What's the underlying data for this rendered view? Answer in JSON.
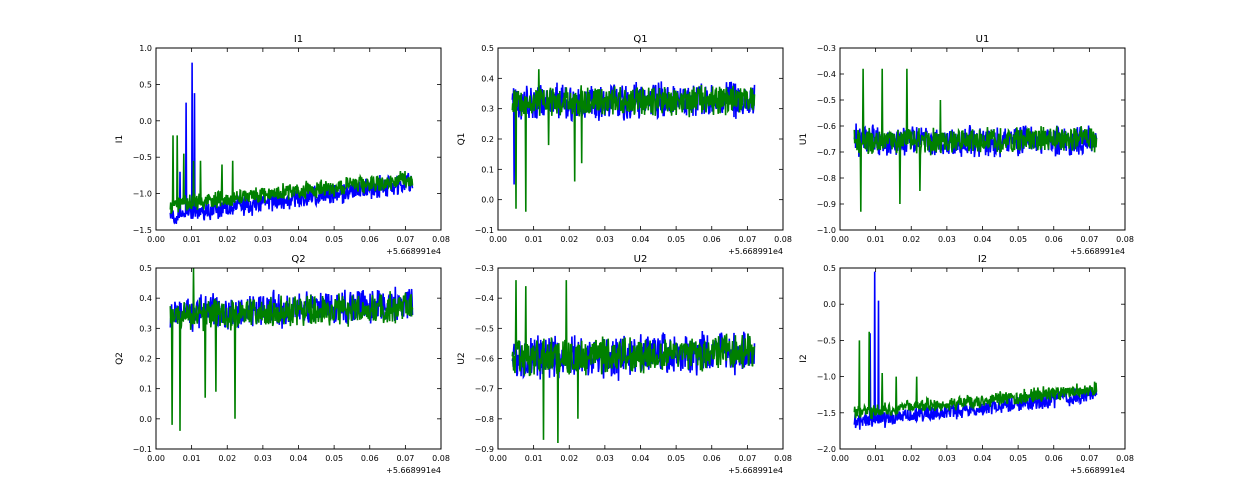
{
  "colors": {
    "series_1": "#0000ff",
    "series_2": "#008000",
    "axes": "#000000",
    "background": "#ffffff"
  },
  "chart_data": [
    {
      "type": "line",
      "title": "I1",
      "ylabel": "I1",
      "xlim": [
        0.0,
        0.08
      ],
      "ylim": [
        -1.5,
        1.0
      ],
      "xticks": [
        "0.00",
        "0.01",
        "0.02",
        "0.03",
        "0.04",
        "0.05",
        "0.06",
        "0.07",
        "0.08"
      ],
      "yticks": [
        "1.0",
        "0.5",
        "0.0",
        "−0.5",
        "−1.0",
        "−1.5"
      ],
      "x_offset_label": "+5.668991e4",
      "series": [
        {
          "color": "#0000ff",
          "x_range": [
            0.004,
            0.072
          ],
          "y_start": -1.3,
          "y_end": -0.85,
          "band": 0.15,
          "spikes": [
            [
              0.0085,
              0.25
            ],
            [
              0.0102,
              0.8
            ],
            [
              0.0108,
              0.38
            ],
            [
              0.0068,
              -0.7
            ]
          ]
        },
        {
          "color": "#008000",
          "x_range": [
            0.004,
            0.072
          ],
          "y_start": -1.15,
          "y_end": -0.8,
          "band": 0.12,
          "spikes": [
            [
              0.0048,
              -0.2
            ],
            [
              0.006,
              -0.2
            ],
            [
              0.0078,
              -0.45
            ],
            [
              0.0105,
              -0.55
            ],
            [
              0.0125,
              -0.55
            ],
            [
              0.0185,
              -0.6
            ],
            [
              0.0215,
              -0.55
            ]
          ]
        }
      ]
    },
    {
      "type": "line",
      "title": "Q1",
      "ylabel": "Q1",
      "xlim": [
        0.0,
        0.08
      ],
      "ylim": [
        -0.1,
        0.5
      ],
      "xticks": [
        "0.00",
        "0.01",
        "0.02",
        "0.03",
        "0.04",
        "0.05",
        "0.06",
        "0.07",
        "0.08"
      ],
      "yticks": [
        "0.5",
        "0.4",
        "0.3",
        "0.2",
        "0.1",
        "0.0",
        "−0.1"
      ],
      "x_offset_label": "+5.668991e4",
      "series": [
        {
          "color": "#0000ff",
          "x_range": [
            0.004,
            0.072
          ],
          "y_start": 0.32,
          "y_end": 0.33,
          "band": 0.06,
          "spikes": [
            [
              0.0045,
              0.05
            ]
          ]
        },
        {
          "color": "#008000",
          "x_range": [
            0.004,
            0.072
          ],
          "y_start": 0.32,
          "y_end": 0.33,
          "band": 0.05,
          "spikes": [
            [
              0.005,
              -0.03
            ],
            [
              0.0078,
              -0.04
            ],
            [
              0.0115,
              0.43
            ],
            [
              0.0142,
              0.18
            ],
            [
              0.0215,
              0.06
            ],
            [
              0.0235,
              0.12
            ]
          ]
        }
      ]
    },
    {
      "type": "line",
      "title": "U1",
      "ylabel": "U1",
      "xlim": [
        0.0,
        0.08
      ],
      "ylim": [
        -1.0,
        -0.3
      ],
      "xticks": [
        "0.00",
        "0.01",
        "0.02",
        "0.03",
        "0.04",
        "0.05",
        "0.06",
        "0.07",
        "0.08"
      ],
      "yticks": [
        "−0.3",
        "−0.4",
        "−0.5",
        "−0.6",
        "−0.7",
        "−0.8",
        "−0.9",
        "−1.0"
      ],
      "x_offset_label": "+5.668991e4",
      "series": [
        {
          "color": "#0000ff",
          "x_range": [
            0.004,
            0.072
          ],
          "y_start": -0.66,
          "y_end": -0.66,
          "band": 0.06,
          "spikes": []
        },
        {
          "color": "#008000",
          "x_range": [
            0.004,
            0.072
          ],
          "y_start": -0.66,
          "y_end": -0.65,
          "band": 0.05,
          "spikes": [
            [
              0.0058,
              -0.93
            ],
            [
              0.0065,
              -0.38
            ],
            [
              0.0118,
              -0.38
            ],
            [
              0.0168,
              -0.9
            ],
            [
              0.0188,
              -0.38
            ],
            [
              0.0225,
              -0.85
            ],
            [
              0.0282,
              -0.5
            ]
          ]
        }
      ]
    },
    {
      "type": "line",
      "title": "Q2",
      "ylabel": "Q2",
      "xlim": [
        0.0,
        0.08
      ],
      "ylim": [
        -0.1,
        0.5
      ],
      "xticks": [
        "0.00",
        "0.01",
        "0.02",
        "0.03",
        "0.04",
        "0.05",
        "0.06",
        "0.07",
        "0.08"
      ],
      "yticks": [
        "0.5",
        "0.4",
        "0.3",
        "0.2",
        "0.1",
        "0.0",
        "−0.1"
      ],
      "x_offset_label": "+5.668991e4",
      "series": [
        {
          "color": "#0000ff",
          "x_range": [
            0.004,
            0.072
          ],
          "y_start": 0.35,
          "y_end": 0.38,
          "band": 0.06,
          "spikes": []
        },
        {
          "color": "#008000",
          "x_range": [
            0.004,
            0.072
          ],
          "y_start": 0.34,
          "y_end": 0.37,
          "band": 0.05,
          "spikes": [
            [
              0.0045,
              -0.02
            ],
            [
              0.0068,
              -0.04
            ],
            [
              0.0105,
              0.5
            ],
            [
              0.0138,
              0.07
            ],
            [
              0.0168,
              0.09
            ],
            [
              0.0222,
              -0.0
            ]
          ]
        }
      ]
    },
    {
      "type": "line",
      "title": "U2",
      "ylabel": "U2",
      "xlim": [
        0.0,
        0.08
      ],
      "ylim": [
        -0.9,
        -0.3
      ],
      "xticks": [
        "0.00",
        "0.01",
        "0.02",
        "0.03",
        "0.04",
        "0.05",
        "0.06",
        "0.07",
        "0.08"
      ],
      "yticks": [
        "−0.3",
        "−0.4",
        "−0.5",
        "−0.6",
        "−0.7",
        "−0.8",
        "−0.9"
      ],
      "x_offset_label": "+5.668991e4",
      "series": [
        {
          "color": "#0000ff",
          "x_range": [
            0.004,
            0.072
          ],
          "y_start": -0.6,
          "y_end": -0.58,
          "band": 0.07,
          "spikes": []
        },
        {
          "color": "#008000",
          "x_range": [
            0.004,
            0.072
          ],
          "y_start": -0.6,
          "y_end": -0.58,
          "band": 0.06,
          "spikes": [
            [
              0.005,
              -0.34
            ],
            [
              0.0078,
              -0.36
            ],
            [
              0.0128,
              -0.87
            ],
            [
              0.0168,
              -0.88
            ],
            [
              0.0192,
              -0.34
            ],
            [
              0.0225,
              -0.8
            ]
          ]
        }
      ]
    },
    {
      "type": "line",
      "title": "I2",
      "ylabel": "I2",
      "xlim": [
        0.0,
        0.08
      ],
      "ylim": [
        -2.0,
        0.5
      ],
      "xticks": [
        "0.00",
        "0.01",
        "0.02",
        "0.03",
        "0.04",
        "0.05",
        "0.06",
        "0.07",
        "0.08"
      ],
      "yticks": [
        "0.5",
        "0.0",
        "−0.5",
        "−1.0",
        "−1.5",
        "−2.0"
      ],
      "x_offset_label": "+5.668991e4",
      "series": [
        {
          "color": "#0000ff",
          "x_range": [
            0.004,
            0.072
          ],
          "y_start": -1.62,
          "y_end": -1.25,
          "band": 0.12,
          "spikes": [
            [
              0.0098,
              0.45
            ],
            [
              0.0108,
              0.05
            ],
            [
              0.0085,
              -0.4
            ]
          ]
        },
        {
          "color": "#008000",
          "x_range": [
            0.004,
            0.072
          ],
          "y_start": -1.5,
          "y_end": -1.18,
          "band": 0.1,
          "spikes": [
            [
              0.0055,
              -0.5
            ],
            [
              0.0082,
              -0.38
            ],
            [
              0.0118,
              -0.95
            ],
            [
              0.0158,
              -1.0
            ],
            [
              0.0215,
              -1.0
            ]
          ]
        }
      ]
    }
  ]
}
